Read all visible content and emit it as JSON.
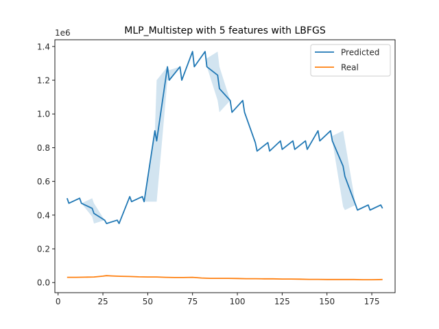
{
  "chart_data": {
    "type": "line",
    "title": "MLP_Multistep with 5 features with LBFGS",
    "xlabel": "",
    "ylabel": "",
    "y_offset_label": "1e6",
    "xlim": [
      -1.8,
      188
    ],
    "ylim": [
      -0.06,
      1.44
    ],
    "x_ticks": [
      0,
      25,
      50,
      75,
      100,
      125,
      150,
      175
    ],
    "x_tick_labels": [
      "0",
      "25",
      "50",
      "75",
      "100",
      "125",
      "150",
      "175"
    ],
    "y_ticks": [
      0.0,
      0.2,
      0.4,
      0.6,
      0.8,
      1.0,
      1.2,
      1.4
    ],
    "y_tick_labels": [
      "0.0",
      "0.2",
      "0.4",
      "0.6",
      "0.8",
      "1.0",
      "1.2",
      "1.4"
    ],
    "legend_position": "top-right",
    "grid": false,
    "series": [
      {
        "name": "Predicted",
        "color": "#1f77b4",
        "x": [
          5,
          6,
          12,
          13,
          19,
          20,
          26,
          27,
          33,
          34,
          40,
          41,
          47,
          48,
          54,
          55,
          61,
          62,
          68,
          69,
          75,
          76,
          82,
          83,
          89,
          90,
          96,
          97,
          103,
          104,
          110,
          111,
          117,
          118,
          124,
          125,
          131,
          132,
          138,
          139,
          145,
          146,
          152,
          153,
          159,
          160,
          166,
          167,
          173,
          174,
          180,
          181
        ],
        "y": [
          0.5,
          0.47,
          0.5,
          0.47,
          0.44,
          0.41,
          0.37,
          0.35,
          0.37,
          0.35,
          0.51,
          0.48,
          0.51,
          0.48,
          0.9,
          0.84,
          1.28,
          1.2,
          1.28,
          1.2,
          1.37,
          1.28,
          1.37,
          1.28,
          1.23,
          1.15,
          1.08,
          1.01,
          1.08,
          1.01,
          0.83,
          0.78,
          0.83,
          0.78,
          0.84,
          0.79,
          0.84,
          0.79,
          0.84,
          0.79,
          0.9,
          0.84,
          0.9,
          0.84,
          0.69,
          0.63,
          0.46,
          0.43,
          0.46,
          0.43,
          0.46,
          0.44
        ],
        "ci_lower": [
          0.5,
          0.47,
          0.5,
          0.47,
          0.39,
          0.35,
          0.37,
          0.35,
          0.37,
          0.35,
          0.51,
          0.48,
          0.51,
          0.48,
          0.48,
          0.48,
          1.2,
          1.2,
          1.28,
          1.2,
          1.37,
          1.28,
          1.37,
          1.28,
          1.08,
          1.01,
          1.08,
          1.01,
          1.08,
          1.01,
          0.83,
          0.78,
          0.83,
          0.78,
          0.84,
          0.79,
          0.84,
          0.79,
          0.84,
          0.79,
          0.9,
          0.84,
          0.9,
          0.84,
          0.45,
          0.43,
          0.46,
          0.43,
          0.46,
          0.43,
          0.46,
          0.44
        ],
        "ci_upper": [
          0.5,
          0.47,
          0.5,
          0.47,
          0.5,
          0.47,
          0.37,
          0.35,
          0.37,
          0.35,
          0.51,
          0.48,
          0.51,
          0.48,
          0.9,
          1.2,
          1.28,
          1.26,
          1.28,
          1.2,
          1.37,
          1.28,
          1.37,
          1.33,
          1.37,
          1.28,
          1.08,
          1.01,
          1.08,
          1.01,
          0.83,
          0.78,
          0.83,
          0.78,
          0.84,
          0.79,
          0.84,
          0.79,
          0.84,
          0.79,
          0.9,
          0.84,
          0.9,
          0.87,
          0.9,
          0.84,
          0.46,
          0.43,
          0.46,
          0.43,
          0.46,
          0.44
        ]
      },
      {
        "name": "Real",
        "color": "#ff7f0e",
        "x": [
          5,
          10,
          15,
          20,
          25,
          27,
          30,
          35,
          40,
          45,
          50,
          55,
          60,
          65,
          70,
          75,
          80,
          85,
          90,
          95,
          100,
          105,
          110,
          115,
          120,
          125,
          130,
          135,
          140,
          145,
          150,
          155,
          160,
          165,
          170,
          175,
          181
        ],
        "y": [
          0.031,
          0.031,
          0.032,
          0.033,
          0.038,
          0.041,
          0.039,
          0.037,
          0.036,
          0.034,
          0.033,
          0.033,
          0.031,
          0.03,
          0.03,
          0.031,
          0.027,
          0.025,
          0.025,
          0.025,
          0.024,
          0.023,
          0.023,
          0.022,
          0.022,
          0.021,
          0.021,
          0.02,
          0.019,
          0.019,
          0.018,
          0.018,
          0.018,
          0.018,
          0.017,
          0.017,
          0.018
        ]
      }
    ]
  }
}
